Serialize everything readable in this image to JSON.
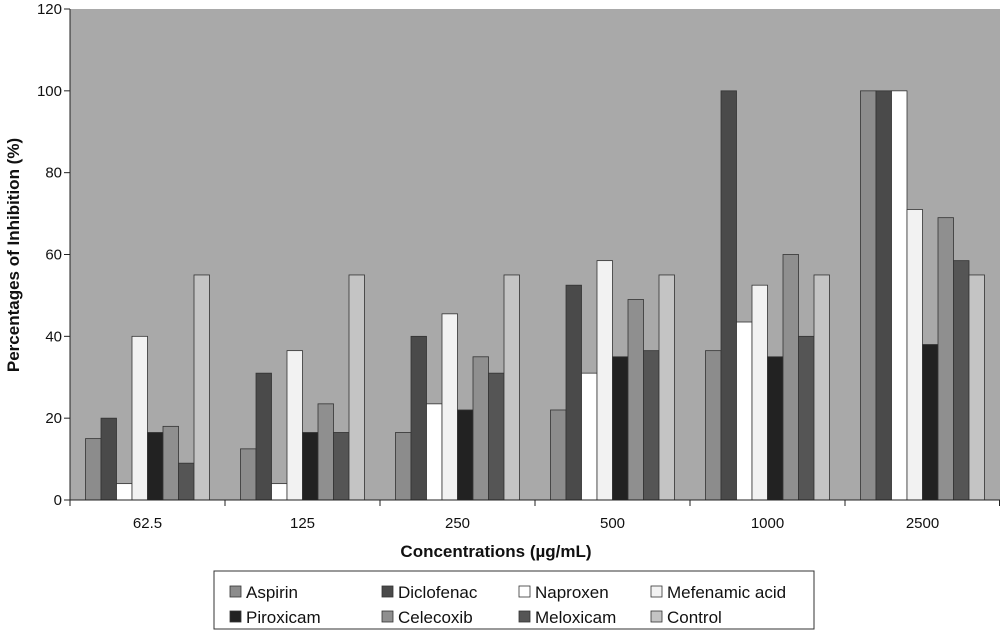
{
  "chart_data": {
    "type": "bar",
    "title": "",
    "xlabel": "Concentrations (µg/mL)",
    "ylabel": "Percentages of Inhibition (%)",
    "ylim": [
      0,
      120
    ],
    "yticks": [
      0,
      20,
      40,
      60,
      80,
      100,
      120
    ],
    "grid": false,
    "legend_position": "bottom",
    "plot_background": "#a9a9a9",
    "categories": [
      "62.5",
      "125",
      "250",
      "500",
      "1000",
      "2500"
    ],
    "series": [
      {
        "name": "Aspirin",
        "color": "#8c8c8c",
        "values": [
          15,
          12.5,
          16.5,
          22,
          36.5,
          100
        ]
      },
      {
        "name": "Diclofenac",
        "color": "#4a4a4a",
        "values": [
          20,
          31,
          40,
          52.5,
          100,
          100
        ]
      },
      {
        "name": "Naproxen",
        "color": "#ffffff",
        "values": [
          4,
          4,
          23.5,
          31,
          43.5,
          100
        ]
      },
      {
        "name": "Mefenamic acid",
        "color": "#f2f2f2",
        "values": [
          40,
          36.5,
          45.5,
          58.5,
          52.5,
          71
        ]
      },
      {
        "name": "Piroxicam",
        "color": "#222222",
        "values": [
          16.5,
          16.5,
          22,
          35,
          35,
          38
        ]
      },
      {
        "name": "Celecoxib",
        "color": "#8f8f8f",
        "values": [
          18,
          23.5,
          35,
          49,
          60,
          69
        ]
      },
      {
        "name": "Meloxicam",
        "color": "#555555",
        "values": [
          9,
          16.5,
          31,
          36.5,
          40,
          58.5
        ]
      },
      {
        "name": "Control",
        "color": "#c4c4c4",
        "values": [
          55,
          55,
          55,
          55,
          55,
          55
        ]
      }
    ]
  }
}
